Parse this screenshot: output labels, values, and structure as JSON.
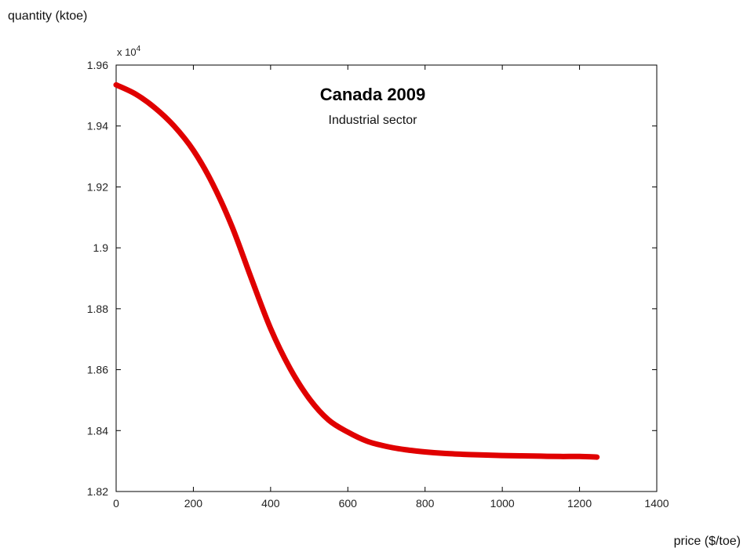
{
  "chart_data": {
    "type": "line",
    "title": "Canada 2009",
    "subtitle": "Industrial sector",
    "xlabel": "price ($/toe)",
    "ylabel": "quantity (ktoe)",
    "y_multiplier": {
      "base": "x 10",
      "exponent": "4"
    },
    "xlim": [
      0,
      1400
    ],
    "ylim": [
      1.82,
      1.96
    ],
    "x_ticks": [
      0,
      200,
      400,
      600,
      800,
      1000,
      1200,
      1400
    ],
    "x_tick_labels": [
      "0",
      "200",
      "400",
      "600",
      "800",
      "1000",
      "1200",
      "1400"
    ],
    "y_ticks": [
      1.82,
      1.84,
      1.86,
      1.88,
      1.9,
      1.92,
      1.94,
      1.96
    ],
    "y_tick_labels": [
      "1.82",
      "1.84",
      "1.86",
      "1.88",
      "1.9",
      "1.92",
      "1.94",
      "1.96"
    ],
    "grid": false,
    "series": [
      {
        "color": "#e00000",
        "x": [
          0,
          50,
          100,
          150,
          200,
          250,
          300,
          350,
          400,
          450,
          500,
          550,
          600,
          650,
          700,
          750,
          800,
          850,
          900,
          950,
          1000,
          1050,
          1100,
          1150,
          1200,
          1245
        ],
        "y": [
          1.9535,
          1.9505,
          1.946,
          1.94,
          1.932,
          1.921,
          1.907,
          1.89,
          1.8735,
          1.8605,
          1.8505,
          1.8435,
          1.8395,
          1.8365,
          1.8348,
          1.8337,
          1.833,
          1.8325,
          1.8322,
          1.832,
          1.8318,
          1.8317,
          1.8316,
          1.8315,
          1.8315,
          1.8313
        ]
      }
    ]
  }
}
